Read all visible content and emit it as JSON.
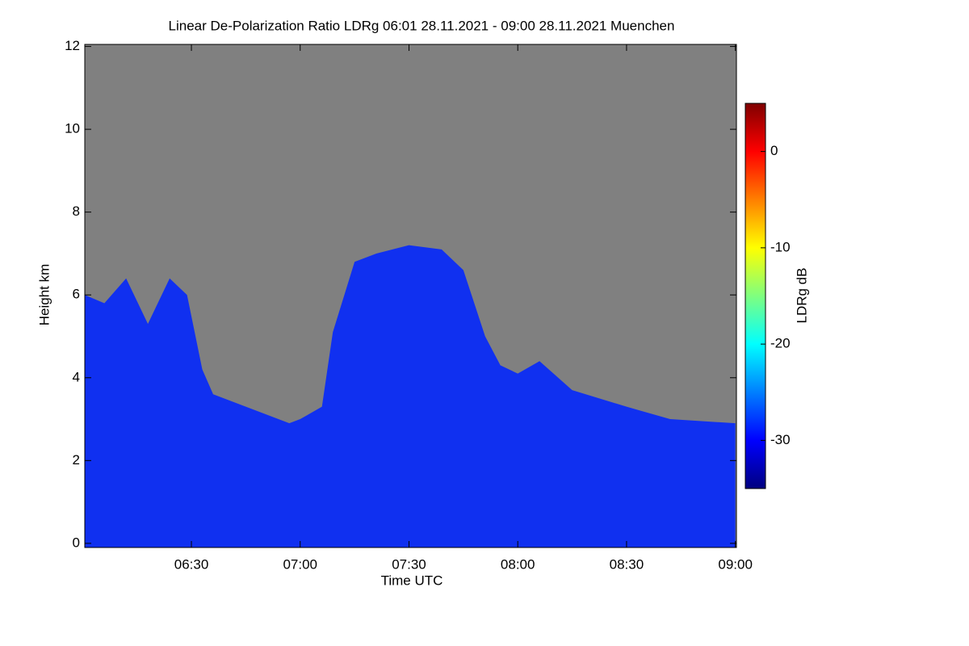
{
  "chart_data": {
    "type": "area",
    "title": "Linear De-Polarization Ratio LDRg   06:01 28.11.2021 - 09:00 28.11.2021 Muenchen",
    "x_label": "Time UTC",
    "y_label": "Height km",
    "background_color": "#808080",
    "xlim": [
      6.01,
      9.005
    ],
    "xticks": [
      {
        "value": 6.5,
        "label": "06:30"
      },
      {
        "value": 7.0,
        "label": "07:00"
      },
      {
        "value": 7.5,
        "label": "07:30"
      },
      {
        "value": 8.0,
        "label": "08:00"
      },
      {
        "value": 8.5,
        "label": "08:30"
      },
      {
        "value": 9.0,
        "label": "09:00"
      }
    ],
    "ylim": [
      -0.1,
      12.05
    ],
    "yticks": [
      0,
      2,
      4,
      6,
      8,
      10,
      12
    ],
    "x": [
      6.01,
      6.1,
      6.2,
      6.3,
      6.4,
      6.48,
      6.55,
      6.6,
      6.8,
      6.95,
      7.0,
      7.1,
      7.15,
      7.25,
      7.35,
      7.5,
      7.65,
      7.75,
      7.85,
      7.92,
      8.0,
      8.1,
      8.25,
      8.5,
      8.7,
      9.0
    ],
    "series": [
      {
        "name": "LDRg",
        "color": "#1030f0",
        "values": [
          6.0,
          5.8,
          6.4,
          5.3,
          6.4,
          6.0,
          4.2,
          3.6,
          3.2,
          2.9,
          3.0,
          3.3,
          5.1,
          6.8,
          7.0,
          7.2,
          7.1,
          6.6,
          5.0,
          4.3,
          4.1,
          4.4,
          3.7,
          3.3,
          3.0,
          2.9
        ]
      }
    ],
    "colorbar": {
      "label": "LDRg dB",
      "zlim": [
        -35,
        5
      ],
      "zticks": [
        0,
        -10,
        -20,
        -30
      ],
      "colormap": [
        "#00007f",
        "#0000ff",
        "#007fff",
        "#00ffff",
        "#7fff7f",
        "#ffff00",
        "#ff7f00",
        "#ff0000",
        "#7f0000"
      ]
    }
  }
}
